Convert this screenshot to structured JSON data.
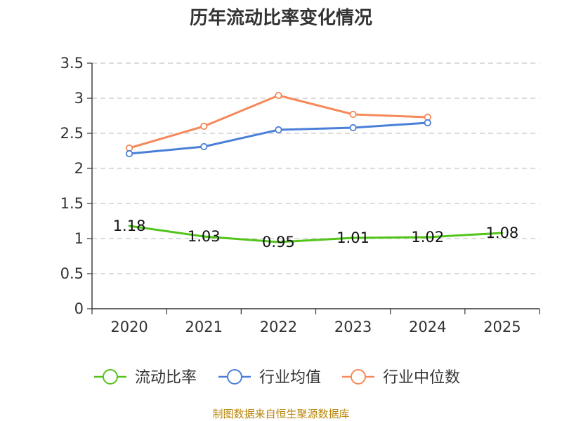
{
  "chart_data": {
    "type": "line",
    "title": "历年流动比率变化情况",
    "categories": [
      "2020",
      "2021",
      "2022",
      "2023",
      "2024",
      "2025"
    ],
    "y_ticks": [
      "0",
      "0.5",
      "1",
      "1.5",
      "2",
      "2.5",
      "3",
      "3.5"
    ],
    "ylim": [
      0,
      3.5
    ],
    "grid": true,
    "legend_position": "bottom",
    "series": [
      {
        "name": "流动比率",
        "color": "#52c41a",
        "values": [
          1.18,
          1.03,
          0.95,
          1.01,
          1.02,
          1.08
        ],
        "labels": [
          "1.18",
          "1.03",
          "0.95",
          "1.01",
          "1.02",
          "1.08"
        ]
      },
      {
        "name": "行业均值",
        "color": "#4a7fd8",
        "values": [
          2.21,
          2.31,
          2.55,
          2.58,
          2.65,
          null
        ]
      },
      {
        "name": "行业中位数",
        "color": "#f5895a",
        "values": [
          2.29,
          2.6,
          3.04,
          2.77,
          2.73,
          null
        ]
      }
    ],
    "source": "制图数据来自恒生聚源数据库"
  }
}
